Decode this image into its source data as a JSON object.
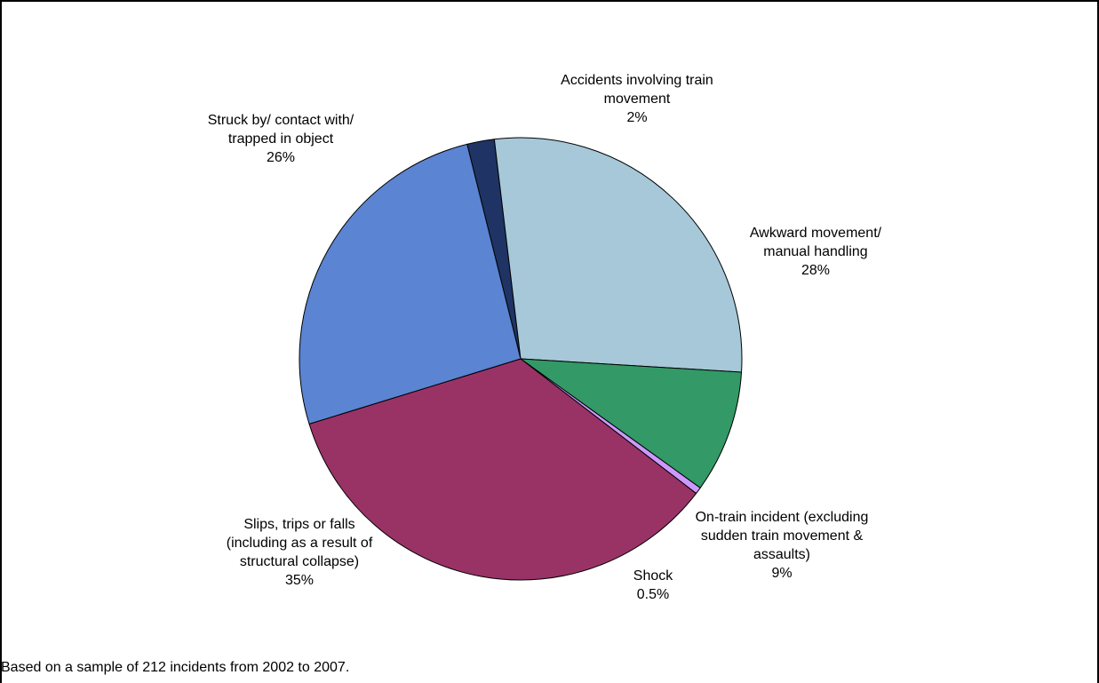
{
  "chart_data": {
    "type": "pie",
    "title": "",
    "slices": [
      {
        "label_lines": [
          "Accidents involving train",
          "movement"
        ],
        "value_label": "2%",
        "value": 2,
        "color": "#1f3464"
      },
      {
        "label_lines": [
          "Awkward movement/",
          "manual handling"
        ],
        "value_label": "28%",
        "value": 28,
        "color": "#a6c8d8"
      },
      {
        "label_lines": [
          "On-train incident (excluding",
          "sudden train movement &",
          "assaults)"
        ],
        "value_label": "9%",
        "value": 9,
        "color": "#339966"
      },
      {
        "label_lines": [
          "Shock"
        ],
        "value_label": "0.5%",
        "value": 0.5,
        "color": "#cc99ff"
      },
      {
        "label_lines": [
          "Slips, trips or falls",
          "(including as a result of",
          "structural collapse)"
        ],
        "value_label": "35%",
        "value": 35,
        "color": "#993366"
      },
      {
        "label_lines": [
          "Struck by/ contact with/",
          "trapped in object"
        ],
        "value_label": "26%",
        "value": 26,
        "color": "#5b84d2"
      }
    ],
    "footnote": "Based on a sample of 212 incidents from 2002 to 2007."
  }
}
